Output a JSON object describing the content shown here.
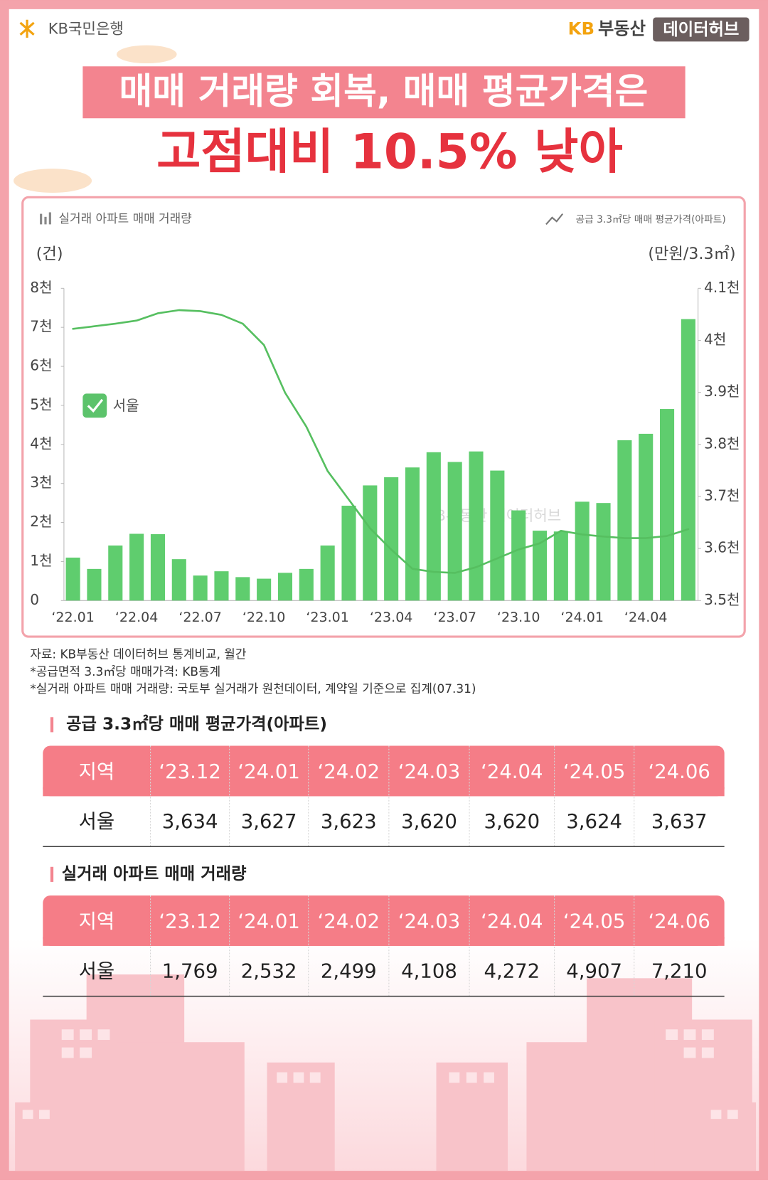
{
  "header": {
    "logo": "KB국민은행",
    "brand_kb": "KB",
    "brand": "부동산",
    "brand_tag": "데이터허브",
    "title_line1": "매매 거래량 회복, 매매 평균가격은",
    "title_line2": "고점대비 10.5% 낮아"
  },
  "chart_data": {
    "type": "bar",
    "categories": [
      "‘22.01",
      null,
      null,
      "‘22.04",
      null,
      null,
      "‘22.07",
      null,
      null,
      "‘22.10",
      null,
      null,
      "‘23.01",
      null,
      null,
      "‘23.04",
      null,
      null,
      "‘23.07",
      null,
      null,
      "‘23.10",
      null,
      null,
      "‘24.01",
      null,
      null,
      "‘24.04",
      null,
      null
    ],
    "series": [
      {
        "name": "실거래 아파트 매매 거래량",
        "type": "bar",
        "color": "#5fcd6e",
        "values": [
          1100,
          810,
          1410,
          1710,
          1700,
          1060,
          640,
          750,
          600,
          560,
          710,
          810,
          1410,
          2430,
          2950,
          3160,
          3410,
          3800,
          3550,
          3820,
          3330,
          2310,
          1790,
          1769,
          2532,
          2499,
          4108,
          4272,
          4907,
          7210
        ]
      },
      {
        "name": "공급 3.3㎡당 매매 평균가격(아파트)",
        "type": "line",
        "axis": "y2",
        "color": "#56bf60",
        "values": [
          4022,
          4027,
          4032,
          4038,
          4052,
          4058,
          4056,
          4049,
          4032,
          3991,
          3899,
          3834,
          3749,
          3694,
          3639,
          3598,
          3561,
          3555,
          3553,
          3564,
          3581,
          3598,
          3610,
          3634,
          3627,
          3623,
          3620,
          3620,
          3624,
          3637
        ]
      }
    ],
    "ylabel": "(건)",
    "y2label": "(만원/3.3㎡)",
    "ylim": [
      0,
      8000
    ],
    "yticks": [
      0,
      {
        "value": 1000,
        "label": "1천"
      },
      {
        "value": 2000,
        "label": "2천"
      },
      {
        "value": 3000,
        "label": "3천"
      },
      {
        "value": 4000,
        "label": "4천"
      },
      {
        "value": 5000,
        "label": "5천"
      },
      {
        "value": 6000,
        "label": "6천"
      },
      {
        "value": 7000,
        "label": "7천"
      },
      {
        "value": 8000,
        "label": "8천"
      }
    ],
    "y2lim": [
      3500,
      4100
    ],
    "y2ticks": [
      {
        "value": 3500,
        "label": "3.5천"
      },
      {
        "value": 3600,
        "label": "3.6천"
      },
      {
        "value": 3700,
        "label": "3.7천"
      },
      {
        "value": 3800,
        "label": "3.8천"
      },
      {
        "value": 3900,
        "label": "3.9천"
      },
      {
        "value": 4000,
        "label": "4천"
      },
      {
        "value": 4100,
        "label": "4.1천"
      }
    ],
    "filter_label": "서울",
    "watermark": "KB부동산 데이터허브",
    "grid": false
  },
  "notes": [
    "자료: KB부동산 데이터허브 통계비교, 월간",
    "*공급면적 3.3㎡당 매매가격: KB통계",
    "*실거래 아파트 매매 거래량: 국토부 실거래가 원천데이터, 계약일 기준으로 집계(07.31)"
  ],
  "tables": [
    {
      "title": "공급 3.3㎡당 매매 평균가격(아파트)",
      "header": [
        "지역",
        "‘23.12",
        "‘24.01",
        "‘24.02",
        "‘24.03",
        "‘24.04",
        "‘24.05",
        "‘24.06"
      ],
      "rows": [
        [
          "서울",
          "3,634",
          "3,627",
          "3,623",
          "3,620",
          "3,620",
          "3,624",
          "3,637"
        ]
      ]
    },
    {
      "title": "실거래 아파트 매매 거래량",
      "header": [
        "지역",
        "‘23.12",
        "‘24.01",
        "‘24.02",
        "‘24.03",
        "‘24.04",
        "‘24.05",
        "‘24.06"
      ],
      "rows": [
        [
          "서울",
          "1,769",
          "2,532",
          "2,499",
          "4,108",
          "4,272",
          "4,907",
          "7,210"
        ]
      ]
    }
  ]
}
